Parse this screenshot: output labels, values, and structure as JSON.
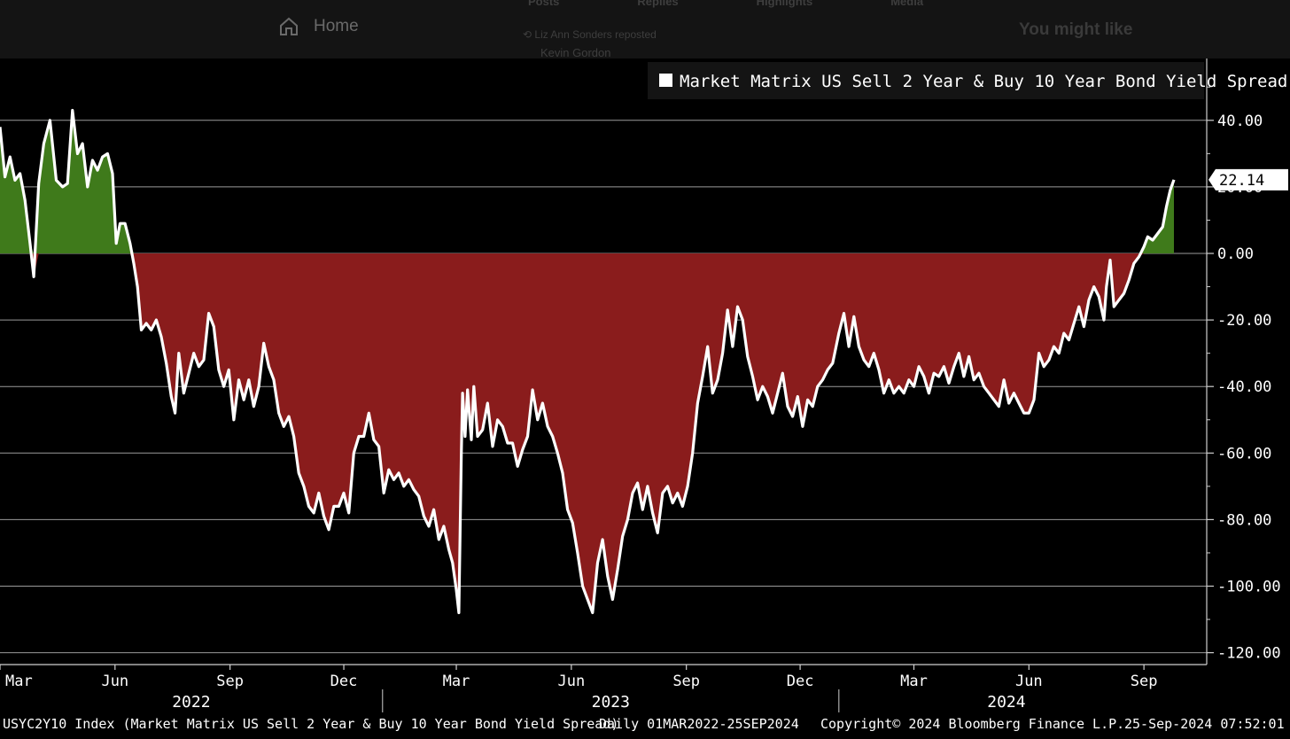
{
  "background_ui": {
    "home_label": "Home",
    "tabs": [
      "Posts",
      "Replies",
      "Highlights",
      "Media"
    ],
    "repost_text": "Liz Ann Sonders reposted",
    "author_text": "Kevin Gordon",
    "you_might_like": "You might like"
  },
  "footer": {
    "index_desc": "USYC2Y10 Index (Market Matrix US Sell 2 Year & Buy 10 Year Bond Yield Spread)",
    "period": "Daily 01MAR2022-25SEP2024",
    "copyright": "Copyright© 2024 Bloomberg Finance L.P.",
    "timestamp": "25-Sep-2024 07:52:01"
  },
  "colors": {
    "line": "#ffffff",
    "positive_fill": "#3f7a1b",
    "negative_fill": "#8a1c1c",
    "grid": "#9a9a9a",
    "background": "#000000"
  },
  "chart_data": {
    "type": "area",
    "legend": "Market Matrix US Sell 2 Year & Buy 10 Year Bond Yield Spread",
    "last_value": "22.14",
    "ylim": [
      -125,
      55
    ],
    "y_ticks": [
      40,
      20,
      0,
      -20,
      -40,
      -60,
      -80,
      -100,
      -120
    ],
    "y_tick_labels": [
      "40.00",
      "20.00",
      "0.00",
      "-20.00",
      "-40.00",
      "-60.00",
      "-80.00",
      "-100.00",
      "-120.00"
    ],
    "x_start": "2022-03-01",
    "x_end": "2024-09-25",
    "month_ticks": [
      {
        "date": "2022-03-01",
        "label": "Mar"
      },
      {
        "date": "2022-06-01",
        "label": "Jun"
      },
      {
        "date": "2022-09-01",
        "label": "Sep"
      },
      {
        "date": "2022-12-01",
        "label": "Dec"
      },
      {
        "date": "2023-03-01",
        "label": "Mar"
      },
      {
        "date": "2023-06-01",
        "label": "Jun"
      },
      {
        "date": "2023-09-01",
        "label": "Sep"
      },
      {
        "date": "2023-12-01",
        "label": "Dec"
      },
      {
        "date": "2024-03-01",
        "label": "Mar"
      },
      {
        "date": "2024-06-01",
        "label": "Jun"
      },
      {
        "date": "2024-09-01",
        "label": "Sep"
      }
    ],
    "years": [
      {
        "label": "2022",
        "start": "2022-03-01",
        "end": "2023-01-01"
      },
      {
        "label": "2023",
        "start": "2023-01-01",
        "end": "2024-01-01"
      },
      {
        "label": "2024",
        "start": "2024-01-01",
        "end": "2024-09-25"
      }
    ],
    "series": [
      {
        "values": [
          [
            "2022-03-01",
            38
          ],
          [
            "2022-03-05",
            23
          ],
          [
            "2022-03-09",
            29
          ],
          [
            "2022-03-13",
            22
          ],
          [
            "2022-03-17",
            24
          ],
          [
            "2022-03-21",
            16
          ],
          [
            "2022-03-25",
            3
          ],
          [
            "2022-03-28",
            -7
          ],
          [
            "2022-04-01",
            21
          ],
          [
            "2022-04-05",
            33
          ],
          [
            "2022-04-10",
            40
          ],
          [
            "2022-04-15",
            22
          ],
          [
            "2022-04-20",
            20
          ],
          [
            "2022-04-24",
            21
          ],
          [
            "2022-04-28",
            43
          ],
          [
            "2022-05-02",
            30
          ],
          [
            "2022-05-06",
            33
          ],
          [
            "2022-05-10",
            20
          ],
          [
            "2022-05-14",
            28
          ],
          [
            "2022-05-18",
            25
          ],
          [
            "2022-05-22",
            29
          ],
          [
            "2022-05-26",
            30
          ],
          [
            "2022-05-30",
            24
          ],
          [
            "2022-06-02",
            3
          ],
          [
            "2022-06-05",
            9
          ],
          [
            "2022-06-09",
            9
          ],
          [
            "2022-06-13",
            3
          ],
          [
            "2022-06-16",
            -3
          ],
          [
            "2022-06-19",
            -10
          ],
          [
            "2022-06-22",
            -23
          ],
          [
            "2022-06-26",
            -21
          ],
          [
            "2022-06-30",
            -23
          ],
          [
            "2022-07-04",
            -20
          ],
          [
            "2022-07-08",
            -25
          ],
          [
            "2022-07-12",
            -33
          ],
          [
            "2022-07-16",
            -43
          ],
          [
            "2022-07-19",
            -48
          ],
          [
            "2022-07-22",
            -30
          ],
          [
            "2022-07-26",
            -42
          ],
          [
            "2022-07-30",
            -36
          ],
          [
            "2022-08-03",
            -30
          ],
          [
            "2022-08-07",
            -34
          ],
          [
            "2022-08-11",
            -32
          ],
          [
            "2022-08-15",
            -18
          ],
          [
            "2022-08-19",
            -22
          ],
          [
            "2022-08-23",
            -35
          ],
          [
            "2022-08-27",
            -40
          ],
          [
            "2022-08-31",
            -35
          ],
          [
            "2022-09-04",
            -50
          ],
          [
            "2022-09-08",
            -38
          ],
          [
            "2022-09-12",
            -44
          ],
          [
            "2022-09-16",
            -38
          ],
          [
            "2022-09-20",
            -46
          ],
          [
            "2022-09-24",
            -40
          ],
          [
            "2022-09-28",
            -27
          ],
          [
            "2022-10-02",
            -34
          ],
          [
            "2022-10-06",
            -38
          ],
          [
            "2022-10-10",
            -48
          ],
          [
            "2022-10-14",
            -52
          ],
          [
            "2022-10-18",
            -49
          ],
          [
            "2022-10-22",
            -55
          ],
          [
            "2022-10-26",
            -66
          ],
          [
            "2022-10-30",
            -70
          ],
          [
            "2022-11-03",
            -76
          ],
          [
            "2022-11-07",
            -78
          ],
          [
            "2022-11-11",
            -72
          ],
          [
            "2022-11-15",
            -79
          ],
          [
            "2022-11-19",
            -83
          ],
          [
            "2022-11-23",
            -76
          ],
          [
            "2022-11-27",
            -76
          ],
          [
            "2022-12-01",
            -72
          ],
          [
            "2022-12-05",
            -78
          ],
          [
            "2022-12-09",
            -60
          ],
          [
            "2022-12-13",
            -55
          ],
          [
            "2022-12-17",
            -55
          ],
          [
            "2022-12-21",
            -48
          ],
          [
            "2022-12-25",
            -56
          ],
          [
            "2022-12-29",
            -58
          ],
          [
            "2023-01-02",
            -72
          ],
          [
            "2023-01-06",
            -65
          ],
          [
            "2023-01-10",
            -68
          ],
          [
            "2023-01-14",
            -66
          ],
          [
            "2023-01-18",
            -70
          ],
          [
            "2023-01-22",
            -68
          ],
          [
            "2023-01-26",
            -71
          ],
          [
            "2023-01-30",
            -73
          ],
          [
            "2023-02-03",
            -79
          ],
          [
            "2023-02-07",
            -82
          ],
          [
            "2023-02-11",
            -77
          ],
          [
            "2023-02-15",
            -86
          ],
          [
            "2023-02-19",
            -82
          ],
          [
            "2023-02-23",
            -89
          ],
          [
            "2023-02-26",
            -93
          ],
          [
            "2023-03-01",
            -101
          ],
          [
            "2023-03-03",
            -108
          ],
          [
            "2023-03-05",
            -60
          ],
          [
            "2023-03-06",
            -42
          ],
          [
            "2023-03-08",
            -55
          ],
          [
            "2023-03-10",
            -41
          ],
          [
            "2023-03-13",
            -56
          ],
          [
            "2023-03-15",
            -40
          ],
          [
            "2023-03-18",
            -55
          ],
          [
            "2023-03-22",
            -53
          ],
          [
            "2023-03-26",
            -45
          ],
          [
            "2023-03-30",
            -58
          ],
          [
            "2023-04-03",
            -50
          ],
          [
            "2023-04-07",
            -52
          ],
          [
            "2023-04-11",
            -57
          ],
          [
            "2023-04-15",
            -57
          ],
          [
            "2023-04-19",
            -64
          ],
          [
            "2023-04-23",
            -59
          ],
          [
            "2023-04-27",
            -55
          ],
          [
            "2023-05-01",
            -41
          ],
          [
            "2023-05-05",
            -50
          ],
          [
            "2023-05-09",
            -45
          ],
          [
            "2023-05-13",
            -52
          ],
          [
            "2023-05-17",
            -55
          ],
          [
            "2023-05-21",
            -60
          ],
          [
            "2023-05-25",
            -66
          ],
          [
            "2023-05-29",
            -77
          ],
          [
            "2023-06-02",
            -81
          ],
          [
            "2023-06-06",
            -90
          ],
          [
            "2023-06-10",
            -100
          ],
          [
            "2023-06-14",
            -104
          ],
          [
            "2023-06-18",
            -108
          ],
          [
            "2023-06-22",
            -93
          ],
          [
            "2023-06-26",
            -86
          ],
          [
            "2023-06-30",
            -97
          ],
          [
            "2023-07-04",
            -104
          ],
          [
            "2023-07-08",
            -95
          ],
          [
            "2023-07-12",
            -85
          ],
          [
            "2023-07-16",
            -80
          ],
          [
            "2023-07-20",
            -72
          ],
          [
            "2023-07-24",
            -69
          ],
          [
            "2023-07-28",
            -77
          ],
          [
            "2023-08-01",
            -70
          ],
          [
            "2023-08-05",
            -78
          ],
          [
            "2023-08-09",
            -84
          ],
          [
            "2023-08-13",
            -72
          ],
          [
            "2023-08-17",
            -70
          ],
          [
            "2023-08-21",
            -75
          ],
          [
            "2023-08-25",
            -72
          ],
          [
            "2023-08-29",
            -76
          ],
          [
            "2023-09-02",
            -70
          ],
          [
            "2023-09-06",
            -60
          ],
          [
            "2023-09-10",
            -45
          ],
          [
            "2023-09-14",
            -37
          ],
          [
            "2023-09-18",
            -28
          ],
          [
            "2023-09-22",
            -42
          ],
          [
            "2023-09-26",
            -38
          ],
          [
            "2023-09-30",
            -30
          ],
          [
            "2023-10-04",
            -17
          ],
          [
            "2023-10-08",
            -28
          ],
          [
            "2023-10-12",
            -16
          ],
          [
            "2023-10-16",
            -20
          ],
          [
            "2023-10-20",
            -31
          ],
          [
            "2023-10-24",
            -37
          ],
          [
            "2023-10-28",
            -44
          ],
          [
            "2023-11-01",
            -40
          ],
          [
            "2023-11-05",
            -43
          ],
          [
            "2023-11-09",
            -48
          ],
          [
            "2023-11-13",
            -42
          ],
          [
            "2023-11-17",
            -36
          ],
          [
            "2023-11-21",
            -46
          ],
          [
            "2023-11-25",
            -49
          ],
          [
            "2023-11-29",
            -43
          ],
          [
            "2023-12-03",
            -52
          ],
          [
            "2023-12-07",
            -44
          ],
          [
            "2023-12-11",
            -46
          ],
          [
            "2023-12-15",
            -40
          ],
          [
            "2023-12-19",
            -38
          ],
          [
            "2023-12-23",
            -35
          ],
          [
            "2023-12-27",
            -33
          ],
          [
            "2024-01-01",
            -24
          ],
          [
            "2024-01-05",
            -18
          ],
          [
            "2024-01-09",
            -28
          ],
          [
            "2024-01-13",
            -19
          ],
          [
            "2024-01-17",
            -28
          ],
          [
            "2024-01-21",
            -32
          ],
          [
            "2024-01-25",
            -34
          ],
          [
            "2024-01-29",
            -30
          ],
          [
            "2024-02-02",
            -35
          ],
          [
            "2024-02-06",
            -42
          ],
          [
            "2024-02-10",
            -38
          ],
          [
            "2024-02-14",
            -42
          ],
          [
            "2024-02-18",
            -40
          ],
          [
            "2024-02-22",
            -42
          ],
          [
            "2024-02-26",
            -38
          ],
          [
            "2024-03-01",
            -40
          ],
          [
            "2024-03-05",
            -34
          ],
          [
            "2024-03-09",
            -37
          ],
          [
            "2024-03-13",
            -42
          ],
          [
            "2024-03-17",
            -36
          ],
          [
            "2024-03-21",
            -37
          ],
          [
            "2024-03-25",
            -34
          ],
          [
            "2024-03-29",
            -39
          ],
          [
            "2024-04-02",
            -34
          ],
          [
            "2024-04-06",
            -30
          ],
          [
            "2024-04-10",
            -37
          ],
          [
            "2024-04-14",
            -31
          ],
          [
            "2024-04-18",
            -38
          ],
          [
            "2024-04-22",
            -36
          ],
          [
            "2024-04-26",
            -40
          ],
          [
            "2024-04-30",
            -42
          ],
          [
            "2024-05-04",
            -44
          ],
          [
            "2024-05-08",
            -46
          ],
          [
            "2024-05-12",
            -38
          ],
          [
            "2024-05-16",
            -45
          ],
          [
            "2024-05-20",
            -42
          ],
          [
            "2024-05-24",
            -45
          ],
          [
            "2024-05-28",
            -48
          ],
          [
            "2024-06-01",
            -48
          ],
          [
            "2024-06-05",
            -44
          ],
          [
            "2024-06-09",
            -30
          ],
          [
            "2024-06-13",
            -34
          ],
          [
            "2024-06-17",
            -32
          ],
          [
            "2024-06-21",
            -28
          ],
          [
            "2024-06-25",
            -30
          ],
          [
            "2024-06-29",
            -24
          ],
          [
            "2024-07-03",
            -26
          ],
          [
            "2024-07-07",
            -21
          ],
          [
            "2024-07-11",
            -16
          ],
          [
            "2024-07-15",
            -22
          ],
          [
            "2024-07-19",
            -14
          ],
          [
            "2024-07-23",
            -10
          ],
          [
            "2024-07-27",
            -13
          ],
          [
            "2024-07-31",
            -20
          ],
          [
            "2024-08-02",
            -10
          ],
          [
            "2024-08-05",
            -2
          ],
          [
            "2024-08-08",
            -16
          ],
          [
            "2024-08-12",
            -14
          ],
          [
            "2024-08-16",
            -12
          ],
          [
            "2024-08-20",
            -8
          ],
          [
            "2024-08-24",
            -3
          ],
          [
            "2024-08-28",
            -1
          ],
          [
            "2024-09-01",
            2
          ],
          [
            "2024-09-04",
            5
          ],
          [
            "2024-09-08",
            4
          ],
          [
            "2024-09-12",
            6
          ],
          [
            "2024-09-16",
            8
          ],
          [
            "2024-09-19",
            14
          ],
          [
            "2024-09-22",
            19
          ],
          [
            "2024-09-25",
            22.14
          ]
        ]
      }
    ]
  }
}
